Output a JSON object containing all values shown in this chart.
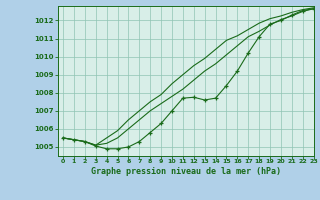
{
  "title": "Graphe pression niveau de la mer (hPa)",
  "bg_color": "#b0d0e8",
  "plot_bg_color": "#d8eee8",
  "grid_color": "#90c4b4",
  "line_color": "#1a6b1a",
  "marker_color": "#1a6b1a",
  "xlim": [
    -0.5,
    23
  ],
  "ylim": [
    1004.5,
    1012.8
  ],
  "xticks": [
    0,
    1,
    2,
    3,
    4,
    5,
    6,
    7,
    8,
    9,
    10,
    11,
    12,
    13,
    14,
    15,
    16,
    17,
    18,
    19,
    20,
    21,
    22,
    23
  ],
  "yticks": [
    1005,
    1006,
    1007,
    1008,
    1009,
    1010,
    1011,
    1012
  ],
  "series1_x": [
    0,
    1,
    2,
    3,
    4,
    5,
    6,
    7,
    8,
    9,
    10,
    11,
    12,
    13,
    14,
    15,
    16,
    17,
    18,
    19,
    20,
    21,
    22,
    23
  ],
  "series1_y": [
    1005.5,
    1005.4,
    1005.3,
    1005.05,
    1004.9,
    1004.9,
    1005.0,
    1005.3,
    1005.8,
    1006.3,
    1007.0,
    1007.7,
    1007.75,
    1007.6,
    1007.7,
    1008.4,
    1009.2,
    1010.2,
    1011.1,
    1011.8,
    1012.0,
    1012.3,
    1012.55,
    1012.65
  ],
  "series2_x": [
    0,
    1,
    2,
    3,
    4,
    5,
    6,
    7,
    8,
    9,
    10,
    11,
    12,
    13,
    14,
    15,
    16,
    17,
    18,
    19,
    20,
    21,
    22,
    23
  ],
  "series2_y": [
    1005.5,
    1005.4,
    1005.3,
    1005.1,
    1005.2,
    1005.5,
    1006.0,
    1006.5,
    1007.0,
    1007.4,
    1007.8,
    1008.2,
    1008.7,
    1009.2,
    1009.6,
    1010.1,
    1010.6,
    1011.1,
    1011.4,
    1011.75,
    1012.05,
    1012.25,
    1012.5,
    1012.65
  ],
  "series3_x": [
    0,
    1,
    2,
    3,
    4,
    5,
    6,
    7,
    8,
    9,
    10,
    11,
    12,
    13,
    14,
    15,
    16,
    17,
    18,
    19,
    20,
    21,
    22,
    23
  ],
  "series3_y": [
    1005.5,
    1005.4,
    1005.3,
    1005.1,
    1005.5,
    1005.9,
    1006.5,
    1007.0,
    1007.5,
    1007.9,
    1008.5,
    1009.0,
    1009.5,
    1009.9,
    1010.4,
    1010.9,
    1011.15,
    1011.5,
    1011.85,
    1012.1,
    1012.25,
    1012.45,
    1012.6,
    1012.7
  ]
}
